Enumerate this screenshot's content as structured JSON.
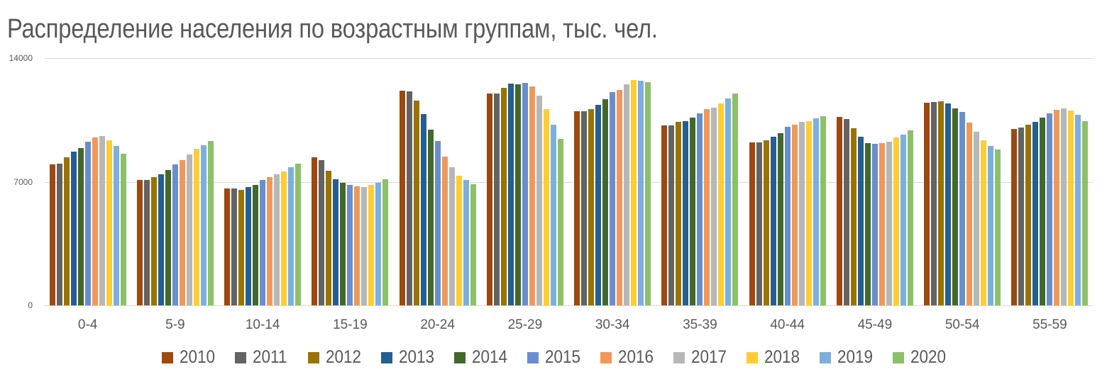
{
  "title": "Распределение населения по возрастным группам, тыс. чел.",
  "chart_data": {
    "type": "bar",
    "title": "Распределение населения по возрастным группам, тыс. чел.",
    "xlabel": "",
    "ylabel": "",
    "ylim": [
      0,
      14000
    ],
    "yticks": [
      "0",
      "7000",
      "14000"
    ],
    "grid": true,
    "legend_position": "bottom",
    "categories": [
      "0-4",
      "5-9",
      "10-14",
      "15-19",
      "20-24",
      "25-29",
      "30-34",
      "35-39",
      "40-44",
      "45-49",
      "50-54",
      "55-59"
    ],
    "series": [
      {
        "name": "2010",
        "color": "#9E480E",
        "values": [
          7980,
          7100,
          6620,
          8380,
          12150,
          11990,
          10990,
          10190,
          9230,
          10670,
          11470,
          9990
        ]
      },
      {
        "name": "2011",
        "color": "#636363",
        "values": [
          8020,
          7100,
          6620,
          8220,
          12110,
          11990,
          10990,
          10190,
          9230,
          10550,
          11510,
          10070
        ]
      },
      {
        "name": "2012",
        "color": "#997300",
        "values": [
          8380,
          7260,
          6540,
          7620,
          11590,
          12310,
          11110,
          10390,
          9350,
          10030,
          11550,
          10230
        ]
      },
      {
        "name": "2013",
        "color": "#255E91",
        "values": [
          8700,
          7420,
          6700,
          7140,
          10830,
          12560,
          11350,
          10430,
          9550,
          9550,
          11430,
          10390
        ]
      },
      {
        "name": "2014",
        "color": "#43682B",
        "values": [
          8910,
          7660,
          6820,
          6940,
          9950,
          12520,
          11670,
          10630,
          9750,
          9190,
          11150,
          10630
        ]
      },
      {
        "name": "2015",
        "color": "#698ED0",
        "values": [
          9270,
          7980,
          7100,
          6820,
          9310,
          12600,
          12070,
          10870,
          10110,
          9150,
          10950,
          10870
        ]
      },
      {
        "name": "2016",
        "color": "#F1975A",
        "values": [
          9510,
          8220,
          7260,
          6740,
          8420,
          12400,
          12200,
          11110,
          10230,
          9190,
          10350,
          11070
        ]
      },
      {
        "name": "2017",
        "color": "#B7B7B7",
        "values": [
          9590,
          8540,
          7420,
          6700,
          7820,
          11870,
          12520,
          11190,
          10390,
          9270,
          9830,
          11150
        ]
      },
      {
        "name": "2018",
        "color": "#FFCD33",
        "values": [
          9350,
          8870,
          7580,
          6820,
          7340,
          11110,
          12760,
          11430,
          10430,
          9510,
          9350,
          11030
        ]
      },
      {
        "name": "2019",
        "color": "#7CAFDD",
        "values": [
          9030,
          9070,
          7820,
          6940,
          7100,
          10230,
          12720,
          11710,
          10590,
          9670,
          9030,
          10790
        ]
      },
      {
        "name": "2020",
        "color": "#8CC168",
        "values": [
          8590,
          9310,
          8020,
          7140,
          6860,
          9430,
          12640,
          11990,
          10710,
          9910,
          8830,
          10430
        ]
      }
    ]
  }
}
